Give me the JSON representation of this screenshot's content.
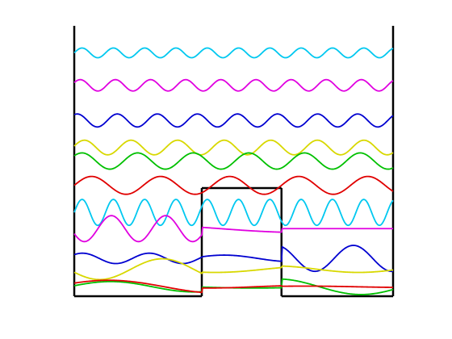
{
  "figure": {
    "description_text": "",
    "colors": {
      "well": "#000000",
      "background": "#ffffff"
    }
  },
  "chart_data": {
    "type": "line",
    "title": "",
    "xlabel": "",
    "ylabel": "",
    "grid": false,
    "legend": "none",
    "xlim": [
      0,
      10
    ],
    "ylim": [
      0,
      10
    ],
    "potential_well": {
      "segments": [
        {
          "x": [
            0,
            4
          ],
          "y": [
            0,
            0
          ]
        },
        {
          "x": [
            4,
            4
          ],
          "y": [
            0,
            4
          ]
        },
        {
          "x": [
            4,
            6.5
          ],
          "y": [
            4,
            4
          ]
        },
        {
          "x": [
            6.5,
            6.5
          ],
          "y": [
            4,
            0
          ]
        },
        {
          "x": [
            6.5,
            10
          ],
          "y": [
            0,
            0
          ]
        }
      ],
      "walls": [
        0,
        10
      ],
      "wall_top": 10
    },
    "series": [
      {
        "color": "#00c8f0",
        "baseline": 0.1,
        "segments": [
          {
            "x": [
              0,
              10
            ],
            "amp": 0.2,
            "k": 6.4,
            "phase": 0.0
          }
        ]
      },
      {
        "color": "#e000e0",
        "baseline": 0.3,
        "segments": [
          {
            "x": [
              0,
              4
            ],
            "amp": 0.2,
            "k": 3.7,
            "phase": 3.14
          },
          {
            "x": [
              4,
              6.5
            ],
            "amp": 0.06,
            "k": 0.6,
            "phase": 0.0
          },
          {
            "x": [
              6.5,
              10
            ],
            "amp": 0.0,
            "k": 1.0,
            "phase": 0.0
          }
        ]
      },
      {
        "color": "#0000d0",
        "baseline": 0.6,
        "segments": [
          {
            "x": [
              0,
              4
            ],
            "amp": 0.08,
            "k": 3.0,
            "phase": 0.0
          },
          {
            "x": [
              4,
              6.5
            ],
            "amp": 0.05,
            "k": 1.5,
            "phase": 0.0
          },
          {
            "x": [
              6.5,
              10
            ],
            "amp": 0.2,
            "k": 2.6,
            "phase": 3.14
          }
        ]
      },
      {
        "color": "#d8d800",
        "baseline": 0.4,
        "segments": [
          {
            "x": [
              0,
              4
            ],
            "amp": 0.16,
            "k": 1.6,
            "phase": 3.14
          },
          {
            "x": [
              4,
              6.5
            ],
            "amp": 0.05,
            "k": 1.0,
            "phase": 0.0
          },
          {
            "x": [
              6.5,
              10
            ],
            "amp": 0.05,
            "k": 1.2,
            "phase": 0.0
          }
        ]
      },
      {
        "color": "#00c000",
        "baseline": 0.15,
        "segments": [
          {
            "x": [
              0,
              4
            ],
            "amp": 0.08,
            "k": 1.2,
            "phase": 0.0
          },
          {
            "x": [
              4,
              6.5
            ],
            "amp": 0.02,
            "k": 0.8,
            "phase": 0.0
          },
          {
            "x": [
              6.5,
              10
            ],
            "amp": 0.12,
            "k": 1.2,
            "phase": 0.0
          }
        ]
      },
      {
        "color": "#e00000",
        "baseline": 0.1,
        "segments": [
          {
            "x": [
              0,
              4
            ],
            "amp": 0.1,
            "k": 0.9,
            "phase": 0.0
          },
          {
            "x": [
              4,
              6.5
            ],
            "amp": 0.02,
            "k": 1.0,
            "phase": 0.0
          },
          {
            "x": [
              6.5,
              10
            ],
            "amp": 0.01,
            "k": 1.0,
            "phase": 0.0
          }
        ]
      }
    ]
  }
}
